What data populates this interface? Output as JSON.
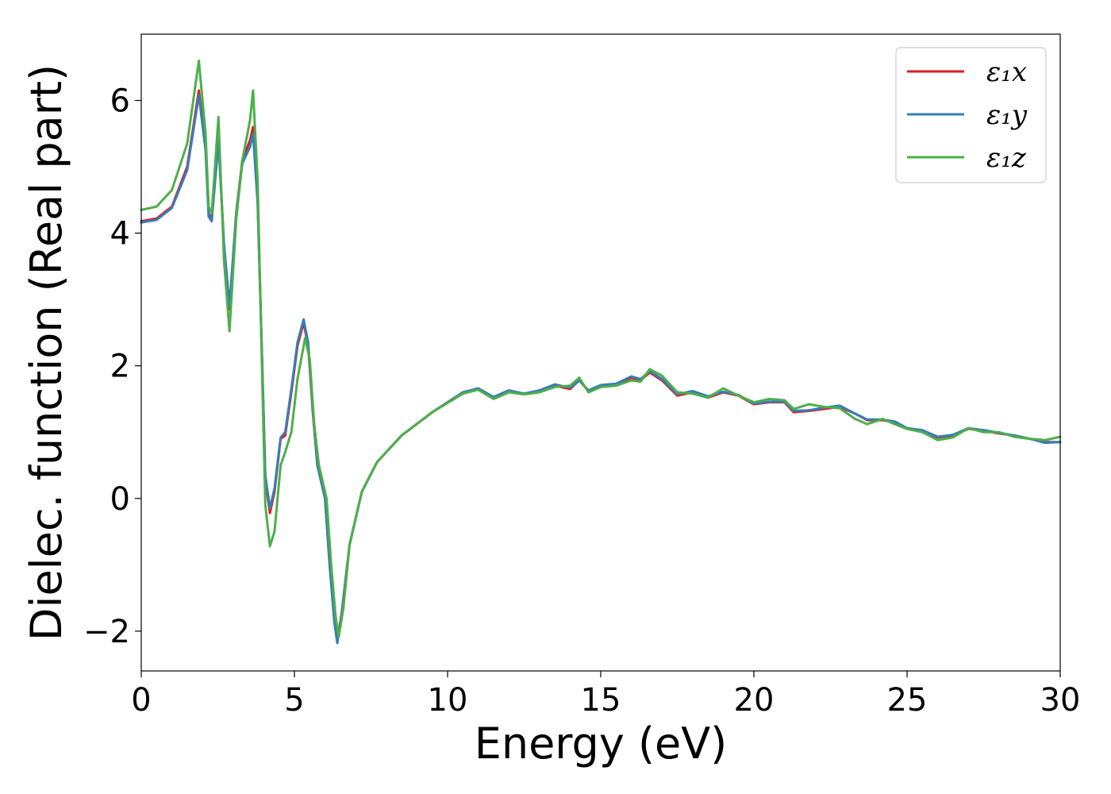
{
  "chart_data": {
    "type": "line",
    "title": "",
    "xlabel": "Energy (eV)",
    "ylabel": "Dielec. function (Real part)",
    "xlim": [
      0,
      30
    ],
    "ylim": [
      -2.6,
      7.0
    ],
    "xticks": [
      0,
      5,
      10,
      15,
      20,
      25,
      30
    ],
    "xtick_labels": [
      "0",
      "5",
      "10",
      "15",
      "20",
      "25",
      "30"
    ],
    "yticks": [
      -2,
      0,
      2,
      4,
      6
    ],
    "ytick_labels": [
      "−2",
      "0",
      "2",
      "4",
      "6"
    ],
    "grid": false,
    "legend_position": "top-right",
    "series": [
      {
        "name": "ε₁x",
        "color": "#e41a1c",
        "points": [
          [
            0,
            4.18
          ],
          [
            0.5,
            4.22
          ],
          [
            1.0,
            4.4
          ],
          [
            1.5,
            5.0
          ],
          [
            1.88,
            6.15
          ],
          [
            2.1,
            5.3
          ],
          [
            2.2,
            4.3
          ],
          [
            2.3,
            4.2
          ],
          [
            2.52,
            5.45
          ],
          [
            2.7,
            3.8
          ],
          [
            2.88,
            2.85
          ],
          [
            3.1,
            4.3
          ],
          [
            3.3,
            5.1
          ],
          [
            3.55,
            5.4
          ],
          [
            3.65,
            5.6
          ],
          [
            3.8,
            4.5
          ],
          [
            3.95,
            2.0
          ],
          [
            4.05,
            0.3
          ],
          [
            4.2,
            -0.22
          ],
          [
            4.35,
            0.1
          ],
          [
            4.55,
            0.9
          ],
          [
            4.7,
            0.95
          ],
          [
            4.9,
            1.6
          ],
          [
            5.1,
            2.3
          ],
          [
            5.3,
            2.65
          ],
          [
            5.45,
            2.3
          ],
          [
            5.6,
            1.3
          ],
          [
            5.75,
            0.5
          ],
          [
            5.9,
            0.2
          ],
          [
            6.0,
            0.0
          ],
          [
            6.15,
            -1.0
          ],
          [
            6.3,
            -1.8
          ],
          [
            6.4,
            -2.15
          ],
          [
            6.55,
            -1.7
          ],
          [
            6.8,
            -0.7
          ],
          [
            7.2,
            0.1
          ],
          [
            7.7,
            0.55
          ],
          [
            8.5,
            0.95
          ],
          [
            9.5,
            1.3
          ],
          [
            10.5,
            1.6
          ],
          [
            11.0,
            1.65
          ],
          [
            11.5,
            1.52
          ],
          [
            12.0,
            1.62
          ],
          [
            12.5,
            1.58
          ],
          [
            13.0,
            1.62
          ],
          [
            13.5,
            1.7
          ],
          [
            14.0,
            1.65
          ],
          [
            14.3,
            1.78
          ],
          [
            14.6,
            1.62
          ],
          [
            15.0,
            1.7
          ],
          [
            15.5,
            1.72
          ],
          [
            16.0,
            1.82
          ],
          [
            16.3,
            1.78
          ],
          [
            16.6,
            1.9
          ],
          [
            17.0,
            1.78
          ],
          [
            17.5,
            1.55
          ],
          [
            18.0,
            1.6
          ],
          [
            18.5,
            1.52
          ],
          [
            19.0,
            1.6
          ],
          [
            19.5,
            1.55
          ],
          [
            20.0,
            1.42
          ],
          [
            20.5,
            1.45
          ],
          [
            21.0,
            1.45
          ],
          [
            21.3,
            1.3
          ],
          [
            21.8,
            1.32
          ],
          [
            22.3,
            1.35
          ],
          [
            22.8,
            1.38
          ],
          [
            23.3,
            1.28
          ],
          [
            23.7,
            1.18
          ],
          [
            24.2,
            1.18
          ],
          [
            24.6,
            1.15
          ],
          [
            25.0,
            1.05
          ],
          [
            25.5,
            1.02
          ],
          [
            26.0,
            0.92
          ],
          [
            26.5,
            0.95
          ],
          [
            27.0,
            1.05
          ],
          [
            27.5,
            1.02
          ],
          [
            28.0,
            0.98
          ],
          [
            28.5,
            0.95
          ],
          [
            29.0,
            0.9
          ],
          [
            29.5,
            0.85
          ],
          [
            30.0,
            0.85
          ]
        ]
      },
      {
        "name": "ε₁y",
        "color": "#377eb8",
        "points": [
          [
            0,
            4.16
          ],
          [
            0.5,
            4.2
          ],
          [
            1.0,
            4.38
          ],
          [
            1.5,
            4.95
          ],
          [
            1.88,
            6.08
          ],
          [
            2.1,
            5.25
          ],
          [
            2.2,
            4.25
          ],
          [
            2.3,
            4.18
          ],
          [
            2.52,
            5.38
          ],
          [
            2.7,
            3.85
          ],
          [
            2.88,
            2.9
          ],
          [
            3.1,
            4.3
          ],
          [
            3.3,
            5.05
          ],
          [
            3.55,
            5.3
          ],
          [
            3.65,
            5.5
          ],
          [
            3.8,
            4.45
          ],
          [
            3.95,
            2.0
          ],
          [
            4.05,
            0.35
          ],
          [
            4.2,
            -0.15
          ],
          [
            4.35,
            0.15
          ],
          [
            4.55,
            0.92
          ],
          [
            4.7,
            1.0
          ],
          [
            4.9,
            1.65
          ],
          [
            5.1,
            2.35
          ],
          [
            5.3,
            2.7
          ],
          [
            5.45,
            2.35
          ],
          [
            5.6,
            1.35
          ],
          [
            5.75,
            0.5
          ],
          [
            5.9,
            0.2
          ],
          [
            6.0,
            0.0
          ],
          [
            6.15,
            -1.0
          ],
          [
            6.3,
            -1.85
          ],
          [
            6.4,
            -2.18
          ],
          [
            6.55,
            -1.72
          ],
          [
            6.8,
            -0.7
          ],
          [
            7.2,
            0.1
          ],
          [
            7.7,
            0.55
          ],
          [
            8.5,
            0.95
          ],
          [
            9.5,
            1.3
          ],
          [
            10.5,
            1.6
          ],
          [
            11.0,
            1.66
          ],
          [
            11.5,
            1.53
          ],
          [
            12.0,
            1.63
          ],
          [
            12.5,
            1.58
          ],
          [
            13.0,
            1.63
          ],
          [
            13.5,
            1.72
          ],
          [
            14.0,
            1.67
          ],
          [
            14.3,
            1.78
          ],
          [
            14.6,
            1.63
          ],
          [
            15.0,
            1.71
          ],
          [
            15.5,
            1.73
          ],
          [
            16.0,
            1.84
          ],
          [
            16.3,
            1.8
          ],
          [
            16.6,
            1.92
          ],
          [
            17.0,
            1.8
          ],
          [
            17.5,
            1.57
          ],
          [
            18.0,
            1.62
          ],
          [
            18.5,
            1.54
          ],
          [
            19.0,
            1.61
          ],
          [
            19.5,
            1.56
          ],
          [
            20.0,
            1.43
          ],
          [
            20.5,
            1.46
          ],
          [
            21.0,
            1.46
          ],
          [
            21.3,
            1.32
          ],
          [
            21.8,
            1.33
          ],
          [
            22.3,
            1.37
          ],
          [
            22.8,
            1.4
          ],
          [
            23.3,
            1.28
          ],
          [
            23.7,
            1.19
          ],
          [
            24.2,
            1.19
          ],
          [
            24.6,
            1.16
          ],
          [
            25.0,
            1.06
          ],
          [
            25.5,
            1.03
          ],
          [
            26.0,
            0.93
          ],
          [
            26.5,
            0.96
          ],
          [
            27.0,
            1.06
          ],
          [
            27.5,
            1.03
          ],
          [
            28.0,
            0.99
          ],
          [
            28.5,
            0.95
          ],
          [
            29.0,
            0.9
          ],
          [
            29.5,
            0.84
          ],
          [
            30.0,
            0.85
          ]
        ]
      },
      {
        "name": "ε₁z",
        "color": "#4daf4a",
        "points": [
          [
            0,
            4.35
          ],
          [
            0.5,
            4.4
          ],
          [
            1.0,
            4.65
          ],
          [
            1.5,
            5.35
          ],
          [
            1.88,
            6.6
          ],
          [
            2.1,
            5.5
          ],
          [
            2.2,
            4.4
          ],
          [
            2.3,
            4.3
          ],
          [
            2.52,
            5.75
          ],
          [
            2.7,
            3.6
          ],
          [
            2.88,
            2.52
          ],
          [
            3.1,
            4.2
          ],
          [
            3.3,
            5.1
          ],
          [
            3.55,
            5.7
          ],
          [
            3.65,
            6.15
          ],
          [
            3.8,
            4.8
          ],
          [
            3.95,
            1.8
          ],
          [
            4.05,
            -0.1
          ],
          [
            4.2,
            -0.72
          ],
          [
            4.35,
            -0.5
          ],
          [
            4.55,
            0.5
          ],
          [
            4.7,
            0.7
          ],
          [
            4.9,
            1.0
          ],
          [
            5.1,
            1.8
          ],
          [
            5.35,
            2.42
          ],
          [
            5.5,
            2.1
          ],
          [
            5.65,
            1.1
          ],
          [
            5.8,
            0.5
          ],
          [
            5.95,
            0.2
          ],
          [
            6.05,
            0.0
          ],
          [
            6.2,
            -1.0
          ],
          [
            6.35,
            -1.8
          ],
          [
            6.45,
            -2.08
          ],
          [
            6.6,
            -1.65
          ],
          [
            6.8,
            -0.7
          ],
          [
            7.2,
            0.1
          ],
          [
            7.7,
            0.55
          ],
          [
            8.5,
            0.95
          ],
          [
            9.5,
            1.3
          ],
          [
            10.5,
            1.58
          ],
          [
            11.0,
            1.64
          ],
          [
            11.5,
            1.5
          ],
          [
            12.0,
            1.6
          ],
          [
            12.5,
            1.57
          ],
          [
            13.0,
            1.6
          ],
          [
            13.5,
            1.68
          ],
          [
            14.0,
            1.7
          ],
          [
            14.3,
            1.82
          ],
          [
            14.6,
            1.6
          ],
          [
            15.0,
            1.68
          ],
          [
            15.5,
            1.7
          ],
          [
            16.0,
            1.78
          ],
          [
            16.3,
            1.76
          ],
          [
            16.6,
            1.95
          ],
          [
            17.0,
            1.85
          ],
          [
            17.5,
            1.6
          ],
          [
            18.0,
            1.58
          ],
          [
            18.5,
            1.52
          ],
          [
            19.0,
            1.66
          ],
          [
            19.5,
            1.55
          ],
          [
            20.0,
            1.45
          ],
          [
            20.5,
            1.5
          ],
          [
            21.0,
            1.48
          ],
          [
            21.3,
            1.35
          ],
          [
            21.8,
            1.42
          ],
          [
            22.3,
            1.38
          ],
          [
            22.8,
            1.36
          ],
          [
            23.3,
            1.2
          ],
          [
            23.7,
            1.12
          ],
          [
            24.2,
            1.2
          ],
          [
            24.6,
            1.12
          ],
          [
            25.0,
            1.05
          ],
          [
            25.5,
            1.0
          ],
          [
            26.0,
            0.88
          ],
          [
            26.5,
            0.92
          ],
          [
            27.0,
            1.06
          ],
          [
            27.5,
            1.0
          ],
          [
            28.0,
            1.0
          ],
          [
            28.5,
            0.93
          ],
          [
            29.0,
            0.9
          ],
          [
            29.5,
            0.88
          ],
          [
            30.0,
            0.93
          ]
        ]
      }
    ]
  }
}
